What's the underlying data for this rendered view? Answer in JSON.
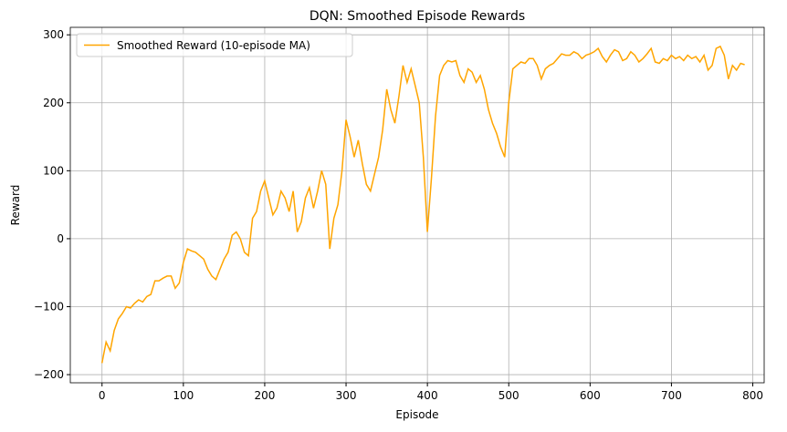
{
  "chart_data": {
    "type": "line",
    "title": "DQN: Smoothed Episode Rewards",
    "x_label": "Episode",
    "y_label": "Reward",
    "x": [
      0,
      5,
      10,
      15,
      20,
      25,
      30,
      35,
      40,
      45,
      50,
      55,
      60,
      65,
      70,
      75,
      80,
      85,
      90,
      95,
      100,
      105,
      110,
      115,
      120,
      125,
      130,
      135,
      140,
      145,
      150,
      155,
      160,
      165,
      170,
      175,
      180,
      185,
      190,
      195,
      200,
      205,
      210,
      215,
      220,
      225,
      230,
      235,
      240,
      245,
      250,
      255,
      260,
      265,
      270,
      275,
      280,
      285,
      290,
      295,
      300,
      305,
      310,
      315,
      320,
      325,
      330,
      335,
      340,
      345,
      350,
      355,
      360,
      365,
      370,
      375,
      380,
      385,
      390,
      395,
      400,
      405,
      410,
      415,
      420,
      425,
      430,
      435,
      440,
      445,
      450,
      455,
      460,
      465,
      470,
      475,
      480,
      485,
      490,
      495,
      500,
      505,
      510,
      515,
      520,
      525,
      530,
      535,
      540,
      545,
      550,
      555,
      560,
      565,
      570,
      575,
      580,
      585,
      590,
      595,
      600,
      605,
      610,
      615,
      620,
      625,
      630,
      635,
      640,
      645,
      650,
      655,
      660,
      665,
      670,
      675,
      680,
      685,
      690,
      695,
      700,
      705,
      710,
      715,
      720,
      725,
      730,
      735,
      740,
      745,
      750,
      755,
      760,
      765,
      770,
      775,
      780,
      785,
      790
    ],
    "series": [
      {
        "name": "Smoothed Reward (10-episode MA)",
        "color": "#ffa500",
        "values": [
          -183,
          -152,
          -165,
          -135,
          -118,
          -110,
          -100,
          -102,
          -95,
          -90,
          -93,
          -85,
          -82,
          -62,
          -62,
          -58,
          -55,
          -55,
          -73,
          -65,
          -35,
          -15,
          -18,
          -20,
          -25,
          -30,
          -45,
          -55,
          -60,
          -45,
          -30,
          -20,
          5,
          10,
          0,
          -20,
          -25,
          30,
          40,
          70,
          85,
          60,
          35,
          45,
          70,
          60,
          40,
          70,
          10,
          25,
          60,
          75,
          45,
          70,
          100,
          80,
          -15,
          30,
          50,
          100,
          175,
          150,
          120,
          145,
          110,
          80,
          70,
          95,
          120,
          160,
          220,
          190,
          170,
          210,
          255,
          230,
          250,
          225,
          200,
          120,
          10,
          90,
          180,
          240,
          255,
          262,
          260,
          262,
          240,
          230,
          250,
          245,
          230,
          240,
          220,
          190,
          170,
          155,
          135,
          120,
          200,
          250,
          255,
          260,
          258,
          265,
          265,
          255,
          235,
          250,
          255,
          258,
          265,
          272,
          270,
          270,
          275,
          272,
          265,
          270,
          272,
          275,
          280,
          268,
          260,
          270,
          278,
          275,
          262,
          265,
          275,
          270,
          260,
          265,
          272,
          280,
          260,
          258,
          265,
          262,
          270,
          265,
          268,
          262,
          270,
          265,
          268,
          260,
          270,
          248,
          255,
          280,
          283,
          270,
          235,
          255,
          248,
          258,
          256
        ]
      }
    ],
    "xlim": [
      -39,
      814
    ],
    "ylim": [
      -212,
      311
    ],
    "xticks": [
      0,
      100,
      200,
      300,
      400,
      500,
      600,
      700,
      800
    ],
    "yticks": [
      {
        "value": -200,
        "label": "−200"
      },
      {
        "value": -100,
        "label": "−100"
      },
      0,
      100,
      200,
      300
    ],
    "grid": true,
    "legend": "upper left"
  }
}
